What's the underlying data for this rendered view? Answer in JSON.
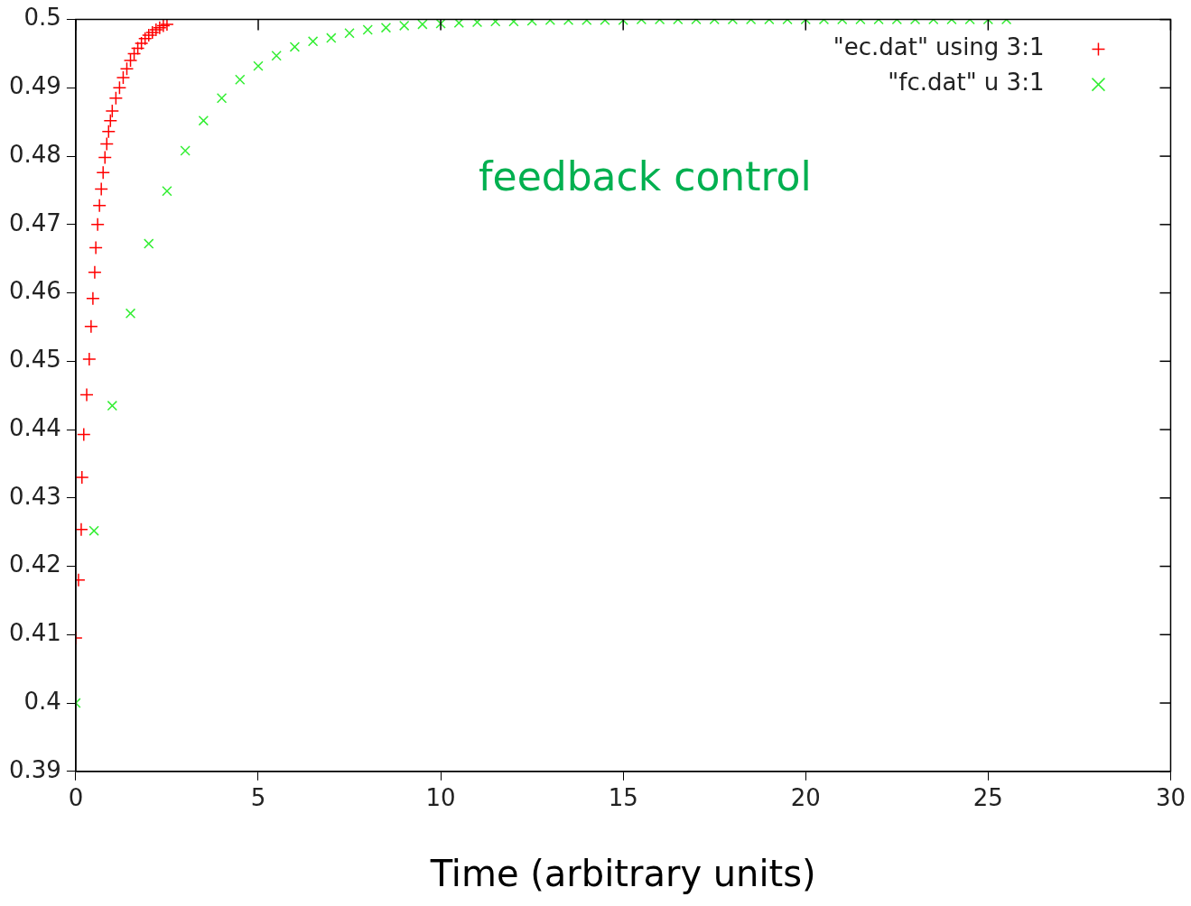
{
  "chart_data": {
    "type": "scatter",
    "xlabel": "Time (arbitrary units)",
    "annotations": [
      "feedback control"
    ],
    "xlim": [
      0,
      30
    ],
    "xticks": [
      0,
      5,
      10,
      15,
      20,
      25,
      30
    ],
    "ylim": [
      0.39,
      0.5
    ],
    "yticks": [
      0.39,
      0.4,
      0.41,
      0.42,
      0.43,
      0.44,
      0.45,
      0.46,
      0.47,
      0.48,
      0.49,
      0.5
    ],
    "grid": false,
    "legend": "top right",
    "series": [
      {
        "name": "\"ec.dat\" using 3:1",
        "color": "#ff0000",
        "marker": "cross",
        "x": [
          0,
          0.075,
          0.15,
          0.17,
          0.22,
          0.3,
          0.37,
          0.42,
          0.47,
          0.52,
          0.55,
          0.6,
          0.65,
          0.7,
          0.75,
          0.8,
          0.85,
          0.9,
          0.95,
          1.0,
          1.1,
          1.2,
          1.3,
          1.4,
          1.5,
          1.6,
          1.7,
          1.8,
          1.9,
          2.0,
          2.1,
          2.2,
          2.3,
          2.4,
          2.5
        ],
        "values": [
          0.4095,
          0.418,
          0.4254,
          0.433,
          0.4393,
          0.4451,
          0.4503,
          0.4551,
          0.4592,
          0.463,
          0.4666,
          0.47,
          0.4728,
          0.4752,
          0.4776,
          0.4798,
          0.4818,
          0.4836,
          0.4852,
          0.4866,
          0.4885,
          0.49,
          0.4915,
          0.4928,
          0.494,
          0.495,
          0.4958,
          0.4965,
          0.4972,
          0.4977,
          0.4981,
          0.4985,
          0.4988,
          0.4991,
          0.4993
        ]
      },
      {
        "name": "\"fc.dat\" u 3:1",
        "color": "#33ee33",
        "marker": "x",
        "x": [
          0,
          0.5,
          1,
          1.5,
          2,
          2.5,
          3,
          3.5,
          4,
          4.5,
          5,
          5.5,
          6,
          6.5,
          7,
          7.5,
          8,
          8.5,
          9,
          9.5,
          10,
          10.5,
          11,
          11.5,
          12,
          12.5,
          13,
          13.5,
          14,
          14.5,
          15,
          15.5,
          16,
          16.5,
          17,
          17.5,
          18,
          18.5,
          19,
          19.5,
          20,
          20.5,
          21,
          21.5,
          22,
          22.5,
          23,
          23.5,
          24,
          24.5,
          25,
          25.5
        ],
        "values": [
          0.4,
          0.4252,
          0.4435,
          0.457,
          0.4672,
          0.4749,
          0.4808,
          0.4852,
          0.4885,
          0.4912,
          0.4932,
          0.4947,
          0.496,
          0.4968,
          0.4973,
          0.498,
          0.4985,
          0.4988,
          0.4991,
          0.4993,
          0.4994,
          0.4995,
          0.4996,
          0.4997,
          0.4997,
          0.4998,
          0.4999,
          0.4999,
          0.4999,
          0.4999,
          0.4999,
          0.5,
          0.5,
          0.5,
          0.5,
          0.5,
          0.5,
          0.5,
          0.5,
          0.5,
          0.5,
          0.5,
          0.5,
          0.5,
          0.5,
          0.5,
          0.5,
          0.5,
          0.5,
          0.5,
          0.5,
          0.5
        ]
      }
    ]
  }
}
